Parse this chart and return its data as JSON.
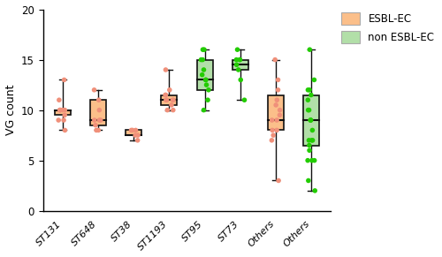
{
  "title": "",
  "ylabel": "VG count",
  "ylim": [
    0,
    20
  ],
  "yticks": [
    0,
    5,
    10,
    15,
    20
  ],
  "esbl_color": "#FBBF8A",
  "non_esbl_color": "#B2DFA8",
  "esbl_dot_color": "#F0907A",
  "non_esbl_dot_color": "#22CC00",
  "box_edge_color": "#111111",
  "median_color": "#111111",
  "whisker_color": "#111111",
  "groups": [
    {
      "label": "ST131",
      "type": "esbl",
      "median": 10.0,
      "q1": 9.5,
      "q3": 10.0,
      "whislo": 8.0,
      "whishi": 13.0,
      "dots": [
        8.0,
        9.0,
        9.0,
        9.5,
        10.0,
        10.0,
        10.0,
        10.0,
        10.0,
        11.0,
        13.0
      ]
    },
    {
      "label": "ST648",
      "type": "esbl",
      "median": 9.0,
      "q1": 8.5,
      "q3": 11.0,
      "whislo": 8.0,
      "whishi": 12.0,
      "dots": [
        8.0,
        8.0,
        8.5,
        9.0,
        9.0,
        9.0,
        10.0,
        11.0,
        12.0
      ]
    },
    {
      "label": "ST38",
      "type": "esbl",
      "median": 7.5,
      "q1": 7.5,
      "q3": 8.0,
      "whislo": 7.0,
      "whishi": 8.0,
      "dots": [
        7.0,
        7.5,
        7.5,
        8.0,
        8.0,
        8.0
      ]
    },
    {
      "label": "ST1193",
      "type": "esbl",
      "median": 11.0,
      "q1": 10.5,
      "q3": 11.5,
      "whislo": 10.0,
      "whishi": 14.0,
      "dots": [
        10.0,
        10.0,
        10.5,
        11.0,
        11.0,
        11.0,
        11.0,
        11.5,
        11.5,
        12.0,
        14.0
      ]
    },
    {
      "label": "ST95",
      "type": "non_esbl",
      "median": 13.0,
      "q1": 12.0,
      "q3": 15.0,
      "whislo": 10.0,
      "whishi": 16.0,
      "dots": [
        10.0,
        11.0,
        12.0,
        12.5,
        13.0,
        13.0,
        13.5,
        14.0,
        15.0,
        15.0,
        16.0,
        16.0
      ]
    },
    {
      "label": "ST73",
      "type": "non_esbl",
      "median": 14.5,
      "q1": 14.0,
      "q3": 15.0,
      "whislo": 11.0,
      "whishi": 16.0,
      "dots": [
        11.0,
        13.0,
        14.0,
        14.5,
        15.0,
        15.0,
        15.0,
        16.0
      ]
    },
    {
      "label": "Others",
      "type": "esbl",
      "median": 9.0,
      "q1": 8.0,
      "q3": 11.5,
      "whislo": 3.0,
      "whishi": 15.0,
      "dots": [
        3.0,
        7.0,
        7.5,
        8.0,
        8.0,
        9.0,
        9.0,
        9.5,
        10.0,
        10.5,
        11.0,
        12.0,
        13.0,
        15.0
      ]
    },
    {
      "label": "Others",
      "type": "non_esbl",
      "median": 9.0,
      "q1": 6.5,
      "q3": 11.5,
      "whislo": 2.0,
      "whishi": 16.0,
      "dots": [
        2.0,
        3.0,
        5.0,
        5.0,
        5.0,
        6.0,
        6.5,
        7.0,
        7.0,
        7.0,
        8.0,
        9.0,
        9.0,
        9.0,
        10.0,
        10.0,
        11.0,
        11.5,
        12.0,
        12.0,
        13.0,
        16.0
      ]
    }
  ],
  "legend_labels": [
    "ESBL-EC",
    "non ESBL-EC"
  ],
  "legend_colors": [
    "#FBBF8A",
    "#B2DFA8"
  ],
  "legend_edge_color": "#AAAAAA"
}
